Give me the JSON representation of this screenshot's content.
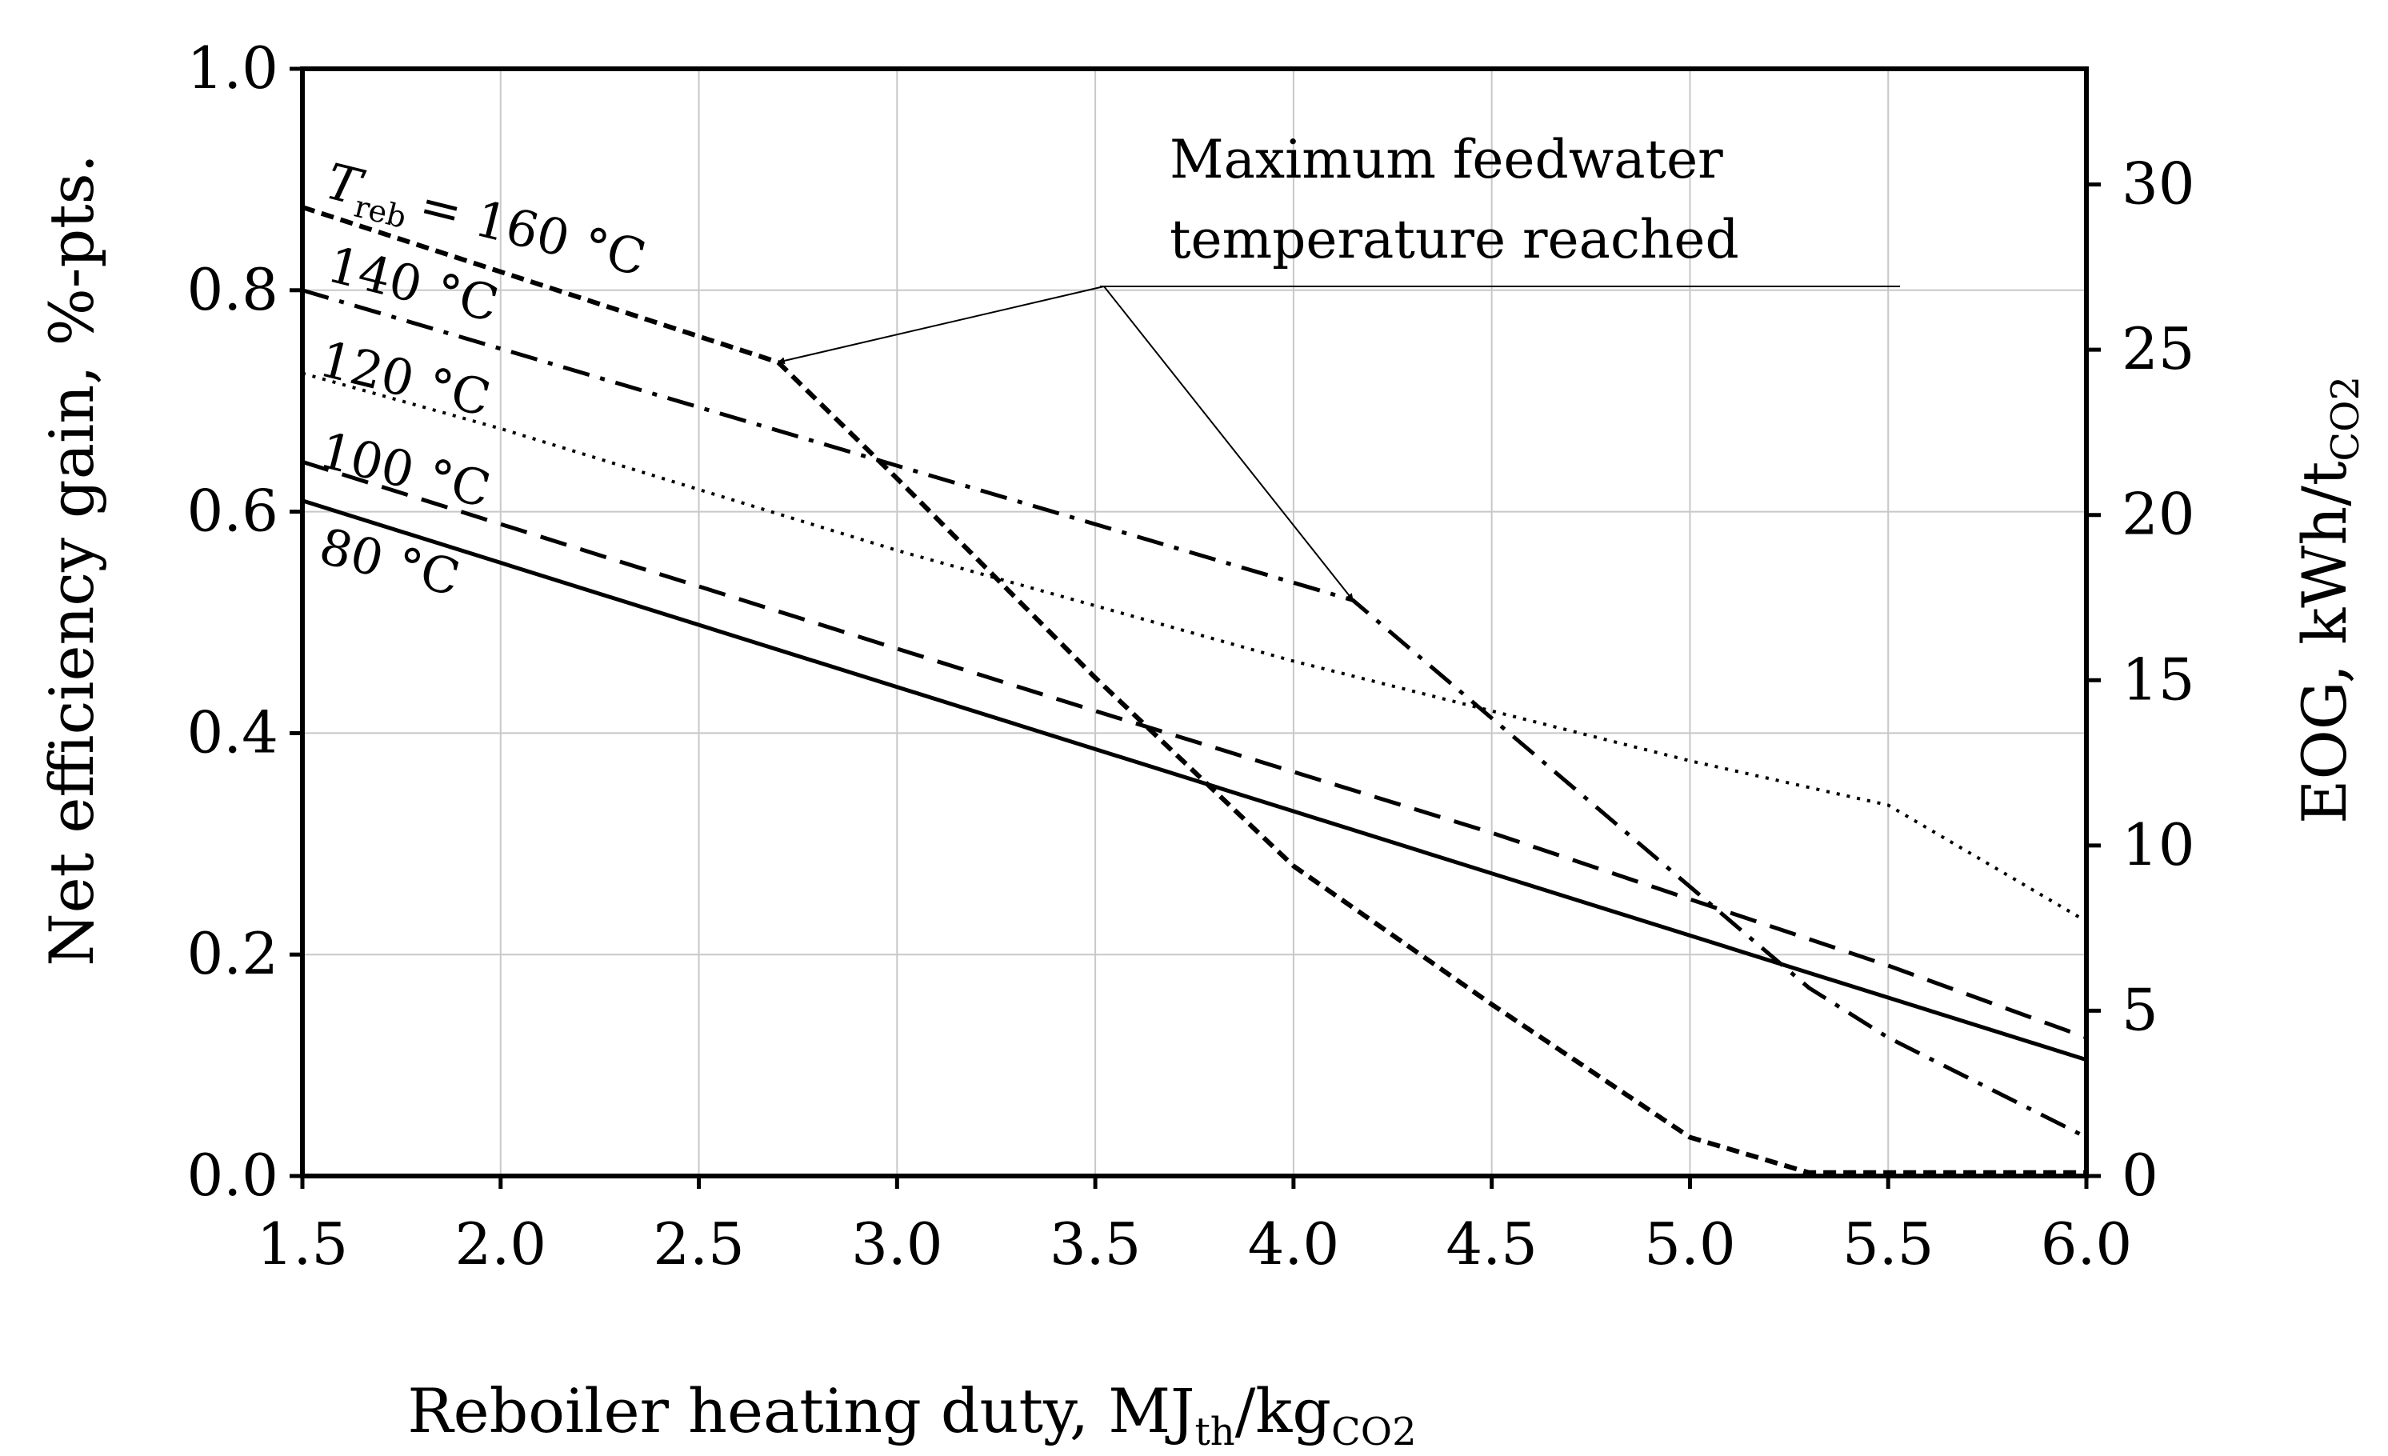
{
  "chart_data": {
    "type": "line",
    "title": "",
    "xlabel": {
      "main": "Reboiler heating duty, MJ",
      "sub1": "th",
      "mid": "/kg",
      "sub2": "CO2"
    },
    "ylabel": "Net efficiency gain, %-pts.",
    "y2label": {
      "main": "EOG, kWh/t",
      "sub": "CO2"
    },
    "xlim": [
      1.5,
      6.0
    ],
    "ylim": [
      0.0,
      1.0
    ],
    "y2lim": [
      0,
      33.5
    ],
    "xticks": [
      1.5,
      2.0,
      2.5,
      3.0,
      3.5,
      4.0,
      4.5,
      5.0,
      5.5,
      6.0
    ],
    "xtick_labels": [
      "1.5",
      "2.0",
      "2.5",
      "3.0",
      "3.5",
      "4.0",
      "4.5",
      "5.0",
      "5.5",
      "6.0"
    ],
    "yticks": [
      0.0,
      0.2,
      0.4,
      0.6,
      0.8,
      1.0
    ],
    "ytick_labels": [
      "0.0",
      "0.2",
      "0.4",
      "0.6",
      "0.8",
      "1.0"
    ],
    "y2ticks": [
      0,
      5,
      10,
      15,
      20,
      25,
      30
    ],
    "y2tick_labels": [
      "0",
      "5",
      "10",
      "15",
      "20",
      "25",
      "30"
    ],
    "grid": true,
    "series": [
      {
        "name": "80 °C",
        "label": "80 °C",
        "style": "solid",
        "x": [
          1.5,
          6.0
        ],
        "y": [
          0.61,
          0.105
        ]
      },
      {
        "name": "100 °C",
        "label": "100 °C",
        "style": "dashed",
        "x": [
          1.5,
          3.5,
          4.5,
          5.0,
          5.5,
          6.0
        ],
        "y": [
          0.645,
          0.42,
          0.31,
          0.25,
          0.19,
          0.125
        ]
      },
      {
        "name": "120 °C",
        "label": "120 °C",
        "style": "dotted",
        "x": [
          1.5,
          2.0,
          2.5,
          3.0,
          3.5,
          4.0,
          4.5,
          5.0,
          5.5,
          6.0
        ],
        "y": [
          0.725,
          0.675,
          0.62,
          0.565,
          0.515,
          0.465,
          0.42,
          0.375,
          0.335,
          0.23
        ]
      },
      {
        "name": "140 °C",
        "label": "140 °C",
        "style": "dashdot",
        "x": [
          1.5,
          4.15,
          5.3,
          5.5,
          6.0
        ],
        "y": [
          0.8,
          0.52,
          0.17,
          0.125,
          0.035
        ]
      },
      {
        "name": "160 °C",
        "label": "= 160 °C",
        "label_prefix": "T",
        "label_sub": "reb",
        "style": "shortdash",
        "x": [
          1.5,
          2.7,
          3.0,
          3.5,
          4.0,
          4.5,
          5.0,
          5.3,
          5.5,
          6.0
        ],
        "y": [
          0.875,
          0.735,
          0.63,
          0.45,
          0.28,
          0.155,
          0.035,
          0.003,
          0.003,
          0.003
        ]
      }
    ],
    "annotations": [
      {
        "text_line1": "Maximum feedwater",
        "text_line2": "temperature reached",
        "arrows_to": [
          {
            "x": 2.7,
            "y": 0.735
          },
          {
            "x": 4.15,
            "y": 0.52
          }
        ]
      }
    ]
  }
}
